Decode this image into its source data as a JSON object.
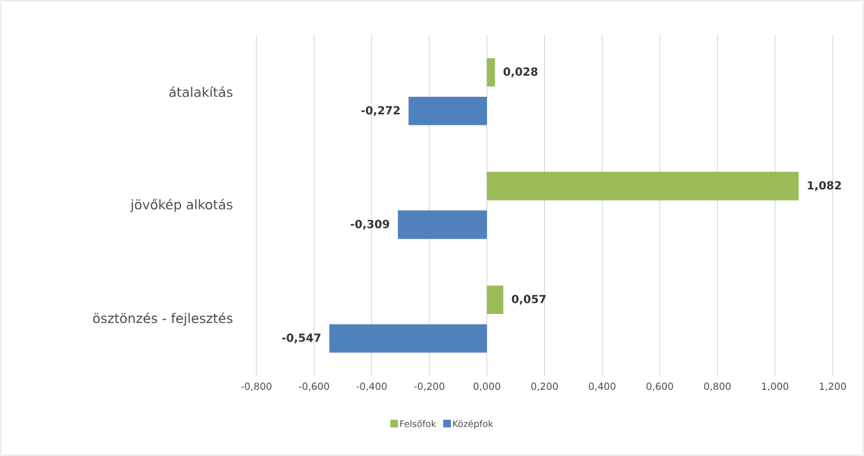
{
  "chart_data": {
    "type": "bar",
    "orientation": "horizontal",
    "categories": [
      "átalakítás",
      "jövőkép alkotás",
      "ösztönzés - fejlesztés"
    ],
    "series": [
      {
        "name": "Felsőfok",
        "color": "#9bbb59",
        "values": [
          0.028,
          1.082,
          0.057
        ],
        "value_labels": [
          "0,028",
          "1,082",
          "0,057"
        ]
      },
      {
        "name": "Középfok",
        "color": "#4f81bd",
        "values": [
          -0.272,
          -0.309,
          -0.547
        ],
        "value_labels": [
          "-0,272",
          "-0,309",
          "-0,547"
        ]
      }
    ],
    "xlim": [
      -0.8,
      1.2
    ],
    "xticks": [
      {
        "value": -0.8,
        "label": "-0,800"
      },
      {
        "value": -0.6,
        "label": "-0,600"
      },
      {
        "value": -0.4,
        "label": "-0,400"
      },
      {
        "value": -0.2,
        "label": "-0,200"
      },
      {
        "value": 0,
        "label": "0,000"
      },
      {
        "value": 0.2,
        "label": "0,200"
      },
      {
        "value": 0.4,
        "label": "0,400"
      },
      {
        "value": 0.6,
        "label": "0,600"
      },
      {
        "value": 0.8,
        "label": "0,800"
      },
      {
        "value": 1.0,
        "label": "1,000"
      },
      {
        "value": 1.2,
        "label": "1,200"
      }
    ],
    "grid": "x",
    "legend": "bottom"
  }
}
